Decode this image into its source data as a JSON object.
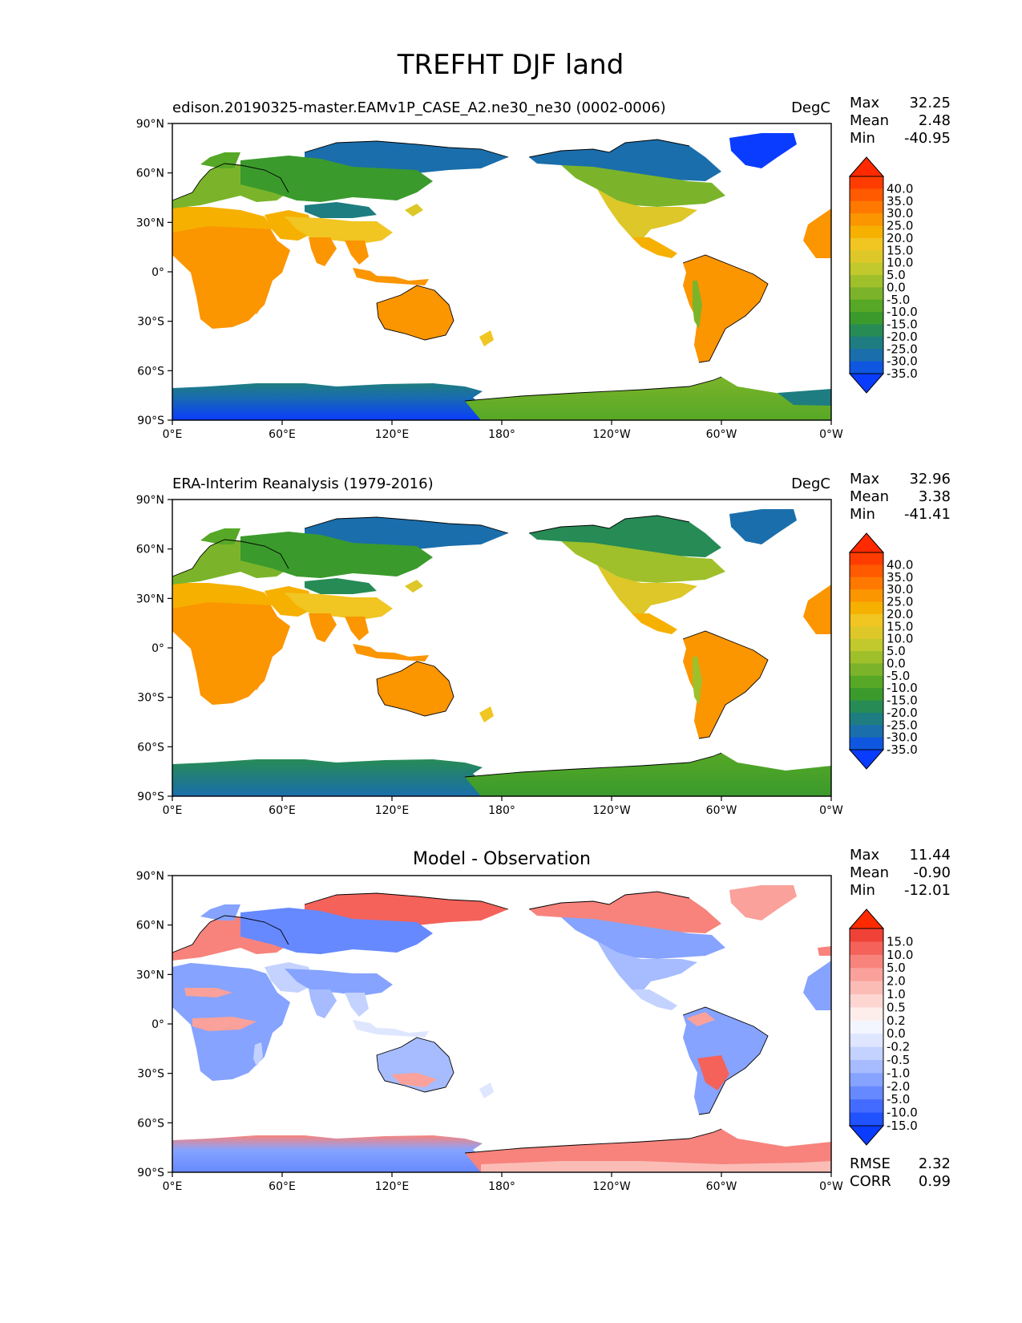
{
  "figure": {
    "title": "TREFHT DJF land"
  },
  "axes": {
    "lat_ticks": [
      "90°N",
      "60°N",
      "30°N",
      "0°",
      "30°S",
      "60°S",
      "90°S"
    ],
    "lon_ticks": [
      "0°E",
      "60°E",
      "120°E",
      "180°",
      "120°W",
      "60°W",
      "0°W"
    ]
  },
  "panels": [
    {
      "left_title": "edison.20190325-master.EAMv1P_CASE_A2.ne30_ne30 (0002-0006)",
      "center_title": "",
      "units": "DegC",
      "stats": [
        {
          "label": "Max",
          "value": "32.25"
        },
        {
          "label": "Mean",
          "value": "2.48"
        },
        {
          "label": "Min",
          "value": "-40.95"
        }
      ],
      "colorbar": {
        "labels": [
          "40.0",
          "35.0",
          "30.0",
          "25.0",
          "20.0",
          "15.0",
          "10.0",
          "5.0",
          "0.0",
          "-5.0",
          "-10.0",
          "-15.0",
          "-20.0",
          "-25.0",
          "-30.0",
          "-35.0"
        ],
        "colors": [
          "#ff2a00",
          "#ff3c00",
          "#ff5a00",
          "#ff7800",
          "#fb9500",
          "#f6b000",
          "#f1c522",
          "#dec728",
          "#c2c92c",
          "#9fc02b",
          "#7bb42a",
          "#56a826",
          "#3a9a2c",
          "#268b55",
          "#1e7d80",
          "#1a6eab",
          "#0f57e0",
          "#0a3cff"
        ]
      },
      "extra_stats": []
    },
    {
      "left_title": "ERA-Interim Reanalysis (1979-2016)",
      "center_title": "",
      "units": "DegC",
      "stats": [
        {
          "label": "Max",
          "value": "32.96"
        },
        {
          "label": "Mean",
          "value": "3.38"
        },
        {
          "label": "Min",
          "value": "-41.41"
        }
      ],
      "colorbar": {
        "labels": [
          "40.0",
          "35.0",
          "30.0",
          "25.0",
          "20.0",
          "15.0",
          "10.0",
          "5.0",
          "0.0",
          "-5.0",
          "-10.0",
          "-15.0",
          "-20.0",
          "-25.0",
          "-30.0",
          "-35.0"
        ],
        "colors": [
          "#ff2a00",
          "#ff3c00",
          "#ff5a00",
          "#ff7800",
          "#fb9500",
          "#f6b000",
          "#f1c522",
          "#dec728",
          "#c2c92c",
          "#9fc02b",
          "#7bb42a",
          "#56a826",
          "#3a9a2c",
          "#268b55",
          "#1e7d80",
          "#1a6eab",
          "#0f57e0",
          "#0a3cff"
        ]
      },
      "extra_stats": []
    },
    {
      "left_title": "",
      "center_title": "Model - Observation",
      "units": "",
      "stats": [
        {
          "label": "Max",
          "value": "11.44"
        },
        {
          "label": "Mean",
          "value": "-0.90"
        },
        {
          "label": "Min",
          "value": "-12.01"
        }
      ],
      "colorbar": {
        "labels": [
          "15.0",
          "10.0",
          "5.0",
          "2.0",
          "1.0",
          "0.5",
          "0.2",
          "0.0",
          "-0.2",
          "-0.5",
          "-1.0",
          "-2.0",
          "-5.0",
          "-10.0",
          "-15.0"
        ],
        "colors": [
          "#ff2a00",
          "#ef4136",
          "#f4625a",
          "#f7837c",
          "#f9a19a",
          "#fbbcb6",
          "#fdd6d2",
          "#fdeeec",
          "#f3f5ff",
          "#dfe6ff",
          "#c4d2ff",
          "#a6bcff",
          "#86a3ff",
          "#6689ff",
          "#446bff",
          "#2052ff",
          "#0a3cff"
        ]
      },
      "extra_stats": [
        {
          "label": "RMSE",
          "value": "2.32"
        },
        {
          "label": "CORR",
          "value": "0.99"
        }
      ]
    }
  ]
}
